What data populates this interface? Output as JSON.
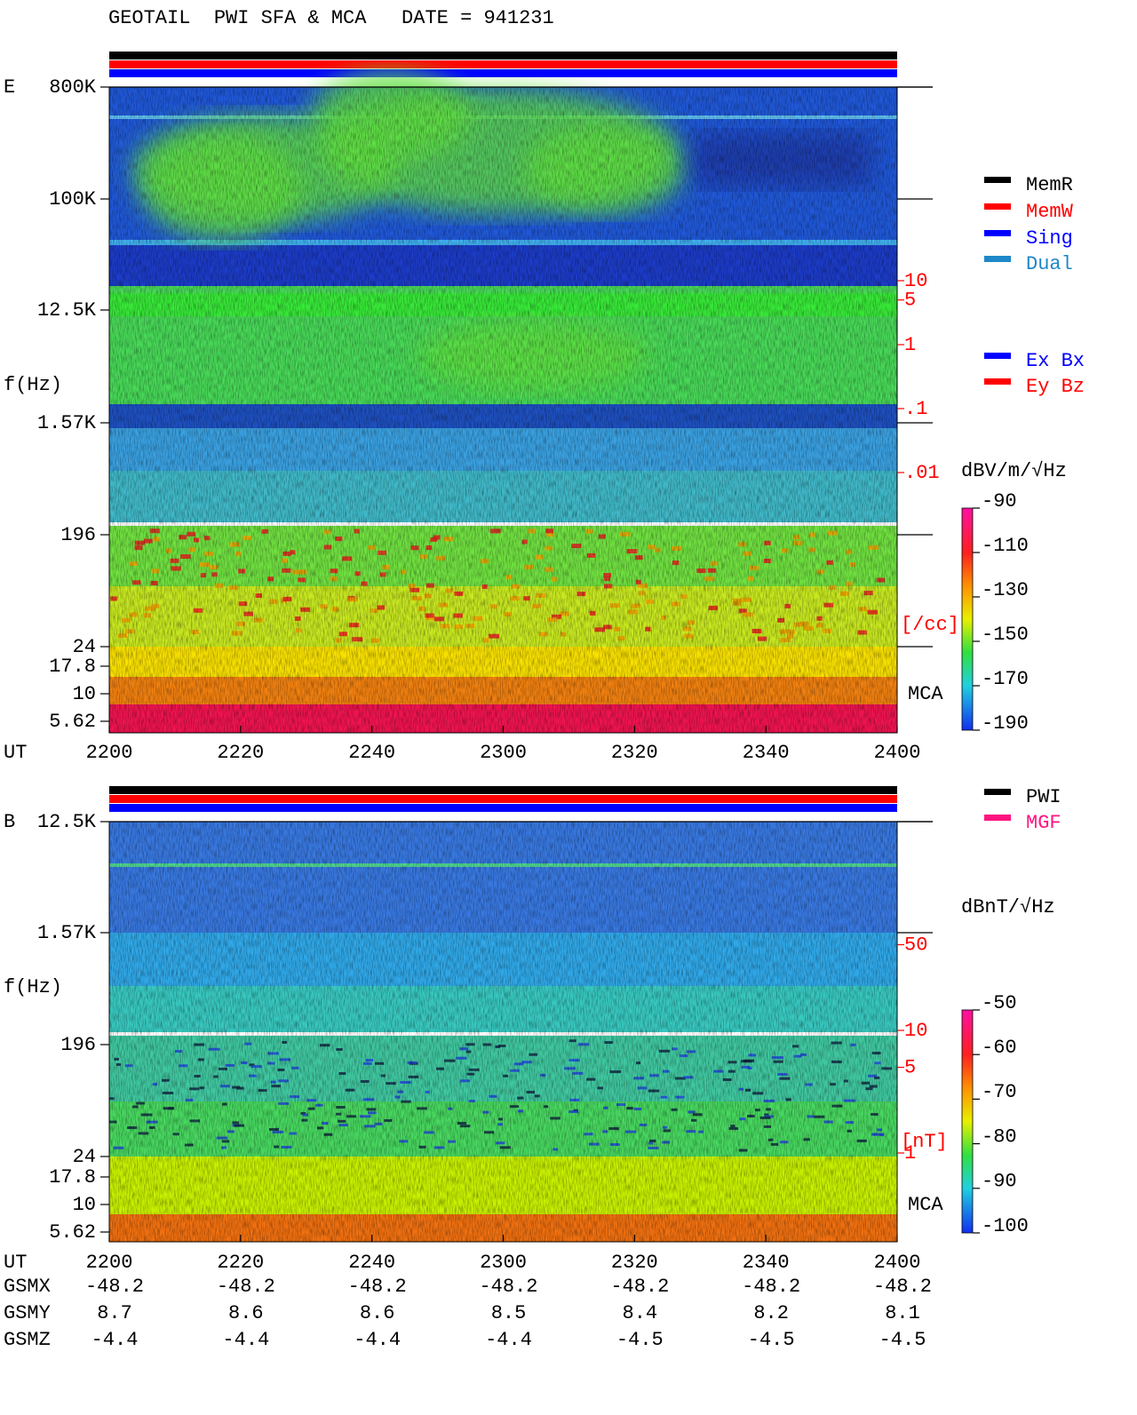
{
  "title": "GEOTAIL  PWI SFA & MCA   DATE = 941231",
  "legend_top": [
    {
      "label": "MemR",
      "color": "#000000"
    },
    {
      "label": "MemW",
      "color": "#ff0000"
    },
    {
      "label": "Sing",
      "color": "#0000ff"
    },
    {
      "label": "Dual",
      "color": "#1e88c8"
    }
  ],
  "legend_components": [
    {
      "label": "Ex Bx",
      "color": "#0000ff"
    },
    {
      "label": "Ey Bz",
      "color": "#ff0000"
    }
  ],
  "legend_source": [
    {
      "label": "PWI",
      "color": "#000000"
    },
    {
      "label": "MGF",
      "color": "#ff1480"
    }
  ],
  "panels": [
    {
      "component": "E",
      "freq_label": "f(Hz)",
      "freq_ticks": [
        "800K",
        "100K",
        "12.5K",
        "1.57K",
        "196",
        "24",
        "17.8",
        "10",
        "5.62"
      ],
      "time_label": "UT",
      "time_ticks": [
        "2200",
        "2220",
        "2240",
        "2300",
        "2320",
        "2340",
        "2400"
      ],
      "mca_label": "MCA",
      "right_axis": {
        "unit": "[/cc]",
        "log": true,
        "ticks": [
          10,
          5,
          1,
          {
            "value": 0.1,
            "label": ".1"
          },
          {
            "value": 0.01,
            "label": ".01"
          }
        ]
      },
      "colorbar": {
        "unit": "dBV/m/√Hz",
        "clim": [
          -190,
          -90
        ],
        "ticks": [
          -90,
          -110,
          -130,
          -150,
          -170,
          -190
        ]
      }
    },
    {
      "component": "B",
      "freq_label": "f(Hz)",
      "freq_ticks": [
        "12.5K",
        "1.57K",
        "196",
        "24",
        "17.8",
        "10",
        "5.62"
      ],
      "time_label": "UT",
      "time_ticks": [
        "2200",
        "2220",
        "2240",
        "2300",
        "2320",
        "2340",
        "2400"
      ],
      "mca_label": "MCA",
      "right_axis": {
        "unit": "[nT]",
        "log": true,
        "ticks": [
          50,
          10,
          5,
          1
        ]
      },
      "colorbar": {
        "unit": "dBnT/√Hz",
        "clim": [
          -100,
          -50
        ],
        "ticks": [
          -50,
          -60,
          -70,
          -80,
          -90,
          -100
        ]
      }
    }
  ],
  "ephemeris": {
    "rows": [
      {
        "label": "GSMX",
        "values": [
          -48.2,
          -48.2,
          -48.2,
          -48.2,
          -48.2,
          -48.2,
          -48.2
        ]
      },
      {
        "label": "GSMY",
        "values": [
          8.7,
          8.6,
          8.6,
          8.5,
          8.4,
          8.2,
          8.1
        ]
      },
      {
        "label": "GSMZ",
        "values": [
          -4.4,
          -4.4,
          -4.4,
          -4.4,
          -4.5,
          -4.5,
          -4.5
        ]
      }
    ]
  }
}
